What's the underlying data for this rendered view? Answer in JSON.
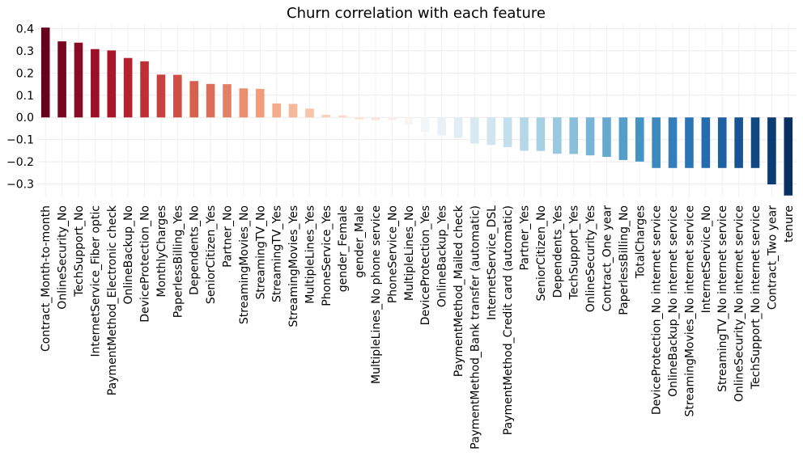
{
  "chart_data": {
    "type": "bar",
    "title": "Churn correlation with each feature",
    "xlabel": "",
    "ylabel": "",
    "ylim": [
      -0.36,
      0.42
    ],
    "yticks": [
      -0.3,
      -0.2,
      -0.1,
      0.0,
      0.1,
      0.2,
      0.3,
      0.4
    ],
    "ytick_labels": [
      "−0.3",
      "−0.2",
      "−0.1",
      "0.0",
      "0.1",
      "0.2",
      "0.3",
      "0.4"
    ],
    "grid": true,
    "colormap": "RdBu",
    "categories": [
      "Contract_Month-to-month",
      "OnlineSecurity_No",
      "TechSupport_No",
      "InternetService_Fiber optic",
      "PaymentMethod_Electronic check",
      "OnlineBackup_No",
      "DeviceProtection_No",
      "MonthlyCharges",
      "PaperlessBilling_Yes",
      "Dependents_No",
      "SeniorCitizen_Yes",
      "Partner_No",
      "StreamingMovies_No",
      "StreamingTV_No",
      "StreamingTV_Yes",
      "StreamingMovies_Yes",
      "MultipleLines_Yes",
      "PhoneService_Yes",
      "gender_Female",
      "gender_Male",
      "MultipleLines_No phone service",
      "PhoneService_No",
      "MultipleLines_No",
      "DeviceProtection_Yes",
      "OnlineBackup_Yes",
      "PaymentMethod_Mailed check",
      "PaymentMethod_Bank transfer (automatic)",
      "InternetService_DSL",
      "PaymentMethod_Credit card (automatic)",
      "Partner_Yes",
      "SeniorCitizen_No",
      "Dependents_Yes",
      "TechSupport_Yes",
      "OnlineSecurity_Yes",
      "Contract_One year",
      "PaperlessBilling_No",
      "TotalCharges",
      "DeviceProtection_No internet service",
      "OnlineBackup_No internet service",
      "StreamingMovies_No internet service",
      "InternetService_No",
      "StreamingTV_No internet service",
      "OnlineSecurity_No internet service",
      "TechSupport_No internet service",
      "Contract_Two year",
      "tenure"
    ],
    "values": [
      0.405,
      0.343,
      0.337,
      0.308,
      0.302,
      0.268,
      0.253,
      0.193,
      0.192,
      0.164,
      0.151,
      0.15,
      0.131,
      0.129,
      0.063,
      0.061,
      0.04,
      0.012,
      0.009,
      -0.009,
      -0.012,
      -0.012,
      -0.033,
      -0.066,
      -0.082,
      -0.092,
      -0.118,
      -0.124,
      -0.134,
      -0.15,
      -0.151,
      -0.164,
      -0.165,
      -0.171,
      -0.178,
      -0.192,
      -0.199,
      -0.228,
      -0.228,
      -0.228,
      -0.228,
      -0.228,
      -0.228,
      -0.228,
      -0.302,
      -0.352
    ]
  }
}
